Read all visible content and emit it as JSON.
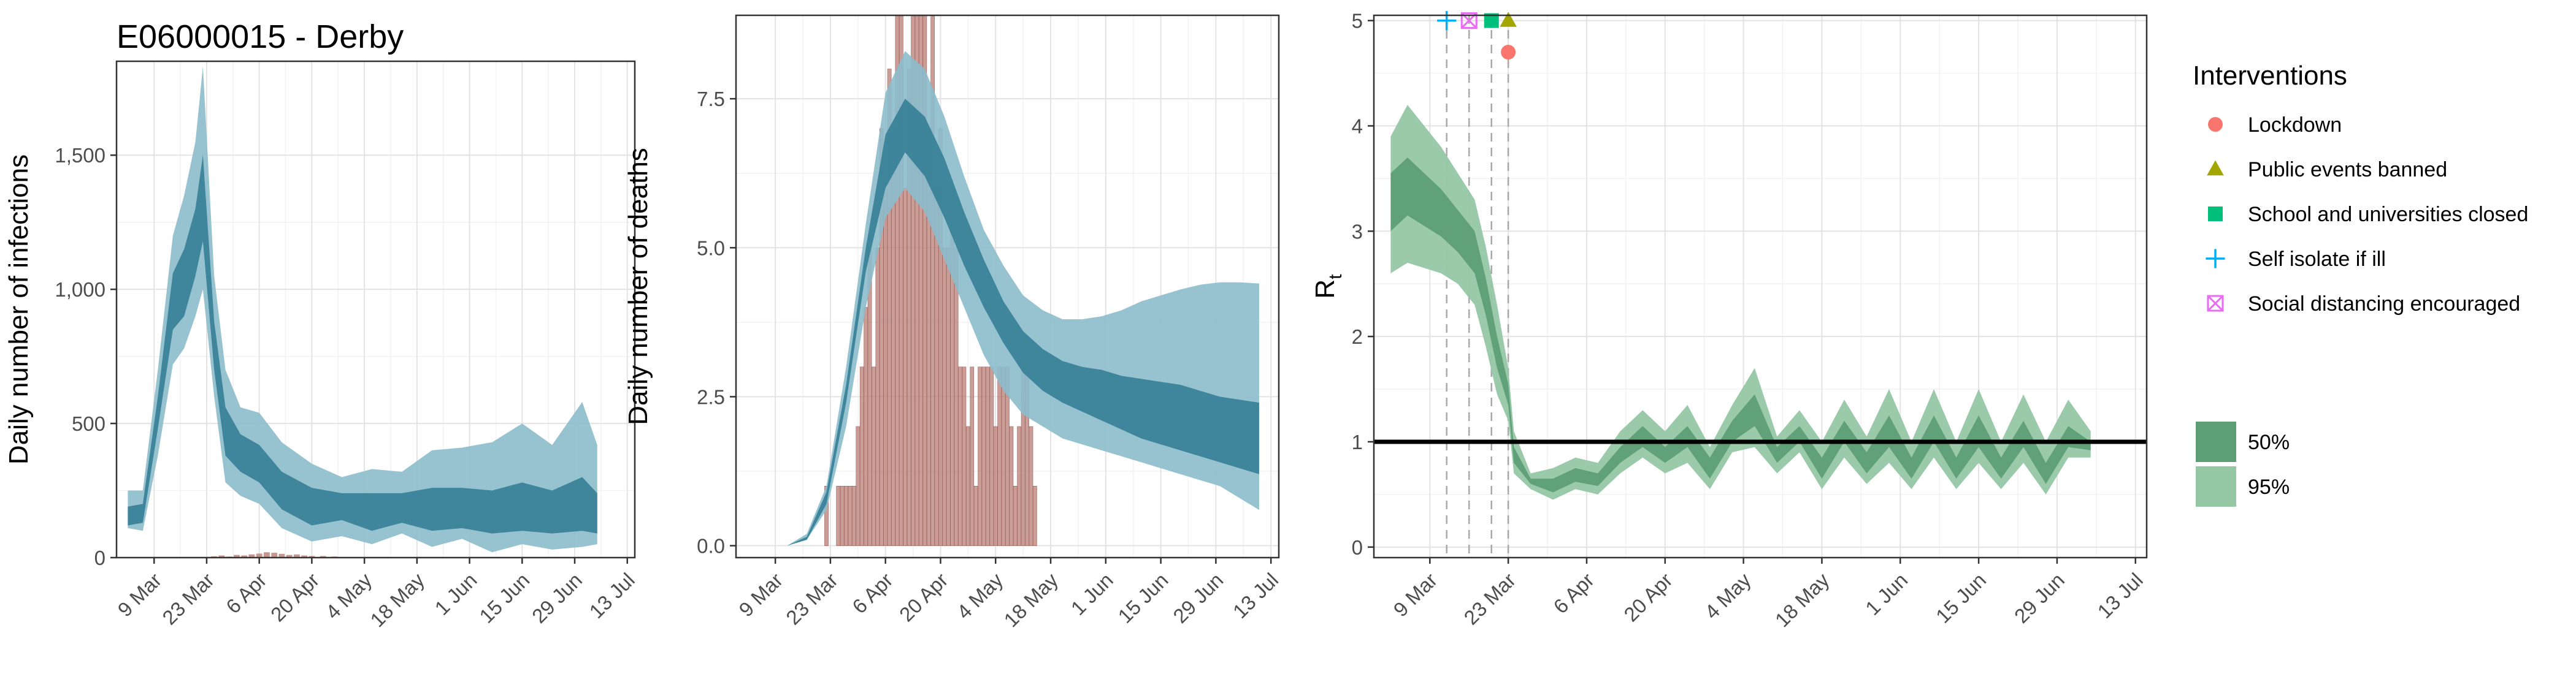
{
  "title": "E06000015 - Derby",
  "colors": {
    "band50": "#357e96",
    "band95": "#8cbccc",
    "bars": "#b87c74",
    "rt_band50": "#5e9e76",
    "rt_band95": "#95c7a5",
    "lockdown": "#f8766d",
    "public_events": "#a3a500",
    "schools": "#00bf7d",
    "self_isolate": "#00b0f6",
    "social_distancing": "#e76bf3"
  },
  "x_ticks": [
    "9 Mar",
    "23 Mar",
    "6 Apr",
    "20 Apr",
    "4 May",
    "18 May",
    "1 Jun",
    "15 Jun",
    "29 Jun",
    "13 Jul"
  ],
  "chart_data": [
    {
      "type": "area",
      "title": "E06000015 - Derby",
      "ylabel": "Daily number of infections",
      "xlabel": "",
      "ylim": [
        0,
        1850
      ],
      "yticks": [
        0,
        500,
        1000,
        1500
      ],
      "ytick_labels": [
        "0",
        "500",
        "1,000",
        "1,500"
      ],
      "xlim": [
        "2020-02-28",
        "2020-07-15"
      ],
      "grid": true,
      "series": [
        {
          "kind": "band",
          "band": "95%",
          "x": [
            "2020-03-02",
            "2020-03-06",
            "2020-03-10",
            "2020-03-14",
            "2020-03-17",
            "2020-03-20",
            "2020-03-22",
            "2020-03-25",
            "2020-03-28",
            "2020-04-01",
            "2020-04-06",
            "2020-04-12",
            "2020-04-20",
            "2020-04-28",
            "2020-05-06",
            "2020-05-14",
            "2020-05-22",
            "2020-05-30",
            "2020-06-07",
            "2020-06-15",
            "2020-06-23",
            "2020-07-01",
            "2020-07-05"
          ],
          "lower": [
            110,
            100,
            380,
            720,
            780,
            900,
            1000,
            600,
            280,
            230,
            200,
            110,
            60,
            80,
            50,
            90,
            40,
            70,
            20,
            50,
            30,
            40,
            50
          ],
          "upper": [
            250,
            250,
            700,
            1200,
            1350,
            1550,
            1830,
            1050,
            700,
            560,
            540,
            430,
            350,
            300,
            330,
            320,
            400,
            410,
            430,
            500,
            420,
            580,
            420
          ]
        },
        {
          "kind": "band",
          "band": "50%",
          "x": [
            "2020-03-02",
            "2020-03-06",
            "2020-03-10",
            "2020-03-14",
            "2020-03-17",
            "2020-03-20",
            "2020-03-22",
            "2020-03-25",
            "2020-03-28",
            "2020-04-01",
            "2020-04-06",
            "2020-04-12",
            "2020-04-20",
            "2020-04-28",
            "2020-05-06",
            "2020-05-14",
            "2020-05-22",
            "2020-05-30",
            "2020-06-07",
            "2020-06-15",
            "2020-06-23",
            "2020-07-01",
            "2020-07-05"
          ],
          "lower": [
            120,
            130,
            480,
            850,
            900,
            1050,
            1180,
            700,
            380,
            320,
            280,
            180,
            120,
            140,
            100,
            130,
            100,
            110,
            90,
            100,
            90,
            100,
            90
          ],
          "upper": [
            190,
            200,
            600,
            1060,
            1150,
            1300,
            1500,
            880,
            560,
            460,
            420,
            320,
            260,
            240,
            240,
            240,
            260,
            260,
            250,
            280,
            250,
            300,
            240
          ]
        }
      ],
      "bars": {
        "x": [
          "2020-03-25",
          "2020-03-27",
          "2020-03-29",
          "2020-03-31",
          "2020-04-02",
          "2020-04-04",
          "2020-04-06",
          "2020-04-08",
          "2020-04-10",
          "2020-04-12",
          "2020-04-14",
          "2020-04-16",
          "2020-04-18",
          "2020-04-20",
          "2020-04-23",
          "2020-04-26"
        ],
        "values": [
          5,
          8,
          4,
          10,
          8,
          12,
          15,
          20,
          18,
          14,
          10,
          12,
          8,
          6,
          6,
          4
        ]
      }
    },
    {
      "type": "area",
      "ylabel": "Daily number of deaths",
      "xlabel": "",
      "ylim": [
        -0.2,
        8.9
      ],
      "yticks": [
        0,
        2.5,
        5,
        7.5
      ],
      "ytick_labels": [
        "0.0",
        "2.5",
        "5.0",
        "7.5"
      ],
      "xlim": [
        "2020-02-28",
        "2020-07-15"
      ],
      "grid": true,
      "series": [
        {
          "kind": "band",
          "band": "95%",
          "x": [
            "2020-03-07",
            "2020-03-12",
            "2020-03-17",
            "2020-03-22",
            "2020-03-27",
            "2020-04-01",
            "2020-04-06",
            "2020-04-11",
            "2020-04-16",
            "2020-04-21",
            "2020-04-26",
            "2020-05-01",
            "2020-05-06",
            "2020-05-11",
            "2020-05-16",
            "2020-05-21",
            "2020-05-26",
            "2020-05-31",
            "2020-06-05",
            "2020-06-10",
            "2020-06-15",
            "2020-06-20",
            "2020-06-25",
            "2020-06-30",
            "2020-07-05",
            "2020-07-10"
          ],
          "lower": [
            0.0,
            0.0,
            0.1,
            0.6,
            2.0,
            4.0,
            5.5,
            6.0,
            5.6,
            4.8,
            4.0,
            3.2,
            2.6,
            2.2,
            2.0,
            1.8,
            1.7,
            1.6,
            1.5,
            1.4,
            1.3,
            1.2,
            1.1,
            1.0,
            0.8,
            0.6
          ],
          "upper": [
            0.0,
            0.0,
            0.2,
            1.0,
            3.0,
            5.4,
            7.6,
            8.3,
            8.0,
            7.2,
            6.2,
            5.3,
            4.7,
            4.2,
            3.95,
            3.8,
            3.8,
            3.85,
            3.95,
            4.1,
            4.2,
            4.3,
            4.38,
            4.42,
            4.42,
            4.4
          ]
        },
        {
          "kind": "band",
          "band": "50%",
          "x": [
            "2020-03-07",
            "2020-03-12",
            "2020-03-17",
            "2020-03-22",
            "2020-03-27",
            "2020-04-01",
            "2020-04-06",
            "2020-04-11",
            "2020-04-16",
            "2020-04-21",
            "2020-04-26",
            "2020-05-01",
            "2020-05-06",
            "2020-05-11",
            "2020-05-16",
            "2020-05-21",
            "2020-05-26",
            "2020-05-31",
            "2020-06-05",
            "2020-06-10",
            "2020-06-15",
            "2020-06-20",
            "2020-06-25",
            "2020-06-30",
            "2020-07-05",
            "2020-07-10"
          ],
          "lower": [
            0.0,
            0.0,
            0.1,
            0.7,
            2.4,
            4.6,
            6.0,
            6.6,
            6.2,
            5.5,
            4.7,
            4.0,
            3.4,
            2.9,
            2.6,
            2.4,
            2.25,
            2.1,
            1.95,
            1.8,
            1.7,
            1.6,
            1.5,
            1.4,
            1.3,
            1.2
          ],
          "upper": [
            0.0,
            0.0,
            0.15,
            0.9,
            2.7,
            5.0,
            6.9,
            7.5,
            7.2,
            6.5,
            5.6,
            4.8,
            4.1,
            3.6,
            3.3,
            3.1,
            3.0,
            2.95,
            2.85,
            2.8,
            2.75,
            2.7,
            2.6,
            2.5,
            2.45,
            2.4
          ]
        }
      ],
      "bars": {
        "x": [
          "2020-03-22",
          "2020-03-23",
          "2020-03-24",
          "2020-03-25",
          "2020-03-26",
          "2020-03-27",
          "2020-03-28",
          "2020-03-29",
          "2020-03-30",
          "2020-03-31",
          "2020-04-01",
          "2020-04-02",
          "2020-04-03",
          "2020-04-04",
          "2020-04-05",
          "2020-04-06",
          "2020-04-07",
          "2020-04-08",
          "2020-04-09",
          "2020-04-10",
          "2020-04-11",
          "2020-04-12",
          "2020-04-13",
          "2020-04-14",
          "2020-04-15",
          "2020-04-16",
          "2020-04-17",
          "2020-04-18",
          "2020-04-19",
          "2020-04-20",
          "2020-04-21",
          "2020-04-22",
          "2020-04-23",
          "2020-04-24",
          "2020-04-25",
          "2020-04-26",
          "2020-04-27",
          "2020-04-28",
          "2020-04-29",
          "2020-04-30",
          "2020-05-01",
          "2020-05-02",
          "2020-05-03",
          "2020-05-04",
          "2020-05-05",
          "2020-05-06",
          "2020-05-07",
          "2020-05-08",
          "2020-05-09",
          "2020-05-10",
          "2020-05-11",
          "2020-05-12",
          "2020-05-13",
          "2020-05-14"
        ],
        "values": [
          1,
          0,
          0,
          1,
          1,
          1,
          1,
          1,
          2,
          3,
          4,
          5,
          3,
          5,
          7,
          6,
          8,
          7,
          9,
          9,
          6,
          8,
          9,
          9,
          9,
          9,
          7,
          9,
          6,
          7,
          5,
          5,
          6,
          5,
          3,
          3,
          2,
          3,
          1,
          3,
          3,
          3,
          3,
          2,
          3,
          3,
          3,
          2,
          1,
          2,
          3,
          3,
          2,
          1
        ]
      }
    },
    {
      "type": "area",
      "ylabel": "R",
      "ylabel_subscript": "t",
      "xlabel": "",
      "ylim": [
        -0.1,
        5.05
      ],
      "yticks": [
        0,
        1,
        2,
        3,
        4,
        5
      ],
      "ytick_labels": [
        "0",
        "1",
        "2",
        "3",
        "4",
        "5"
      ],
      "xlim": [
        "2020-02-28",
        "2020-07-15"
      ],
      "grid": true,
      "reference_line": 1,
      "series": [
        {
          "kind": "band",
          "band": "95%",
          "x": [
            "2020-03-02",
            "2020-03-05",
            "2020-03-08",
            "2020-03-11",
            "2020-03-14",
            "2020-03-17",
            "2020-03-19",
            "2020-03-21",
            "2020-03-23",
            "2020-03-24",
            "2020-03-27",
            "2020-03-31",
            "2020-04-04",
            "2020-04-08",
            "2020-04-12",
            "2020-04-16",
            "2020-04-20",
            "2020-04-24",
            "2020-04-28",
            "2020-05-02",
            "2020-05-06",
            "2020-05-10",
            "2020-05-14",
            "2020-05-18",
            "2020-05-22",
            "2020-05-26",
            "2020-05-30",
            "2020-06-03",
            "2020-06-07",
            "2020-06-11",
            "2020-06-15",
            "2020-06-19",
            "2020-06-23",
            "2020-06-27",
            "2020-07-01",
            "2020-07-05"
          ],
          "lower": [
            2.6,
            2.7,
            2.65,
            2.6,
            2.5,
            2.3,
            1.9,
            1.45,
            1.2,
            0.7,
            0.55,
            0.45,
            0.55,
            0.5,
            0.7,
            0.85,
            0.7,
            0.8,
            0.55,
            0.9,
            0.95,
            0.7,
            0.9,
            0.55,
            0.85,
            0.6,
            0.8,
            0.55,
            0.85,
            0.55,
            0.8,
            0.55,
            0.8,
            0.5,
            0.85,
            0.85
          ],
          "upper": [
            3.9,
            4.2,
            4.0,
            3.8,
            3.55,
            3.3,
            2.85,
            2.3,
            1.7,
            1.1,
            0.7,
            0.75,
            0.85,
            0.8,
            1.1,
            1.3,
            1.1,
            1.35,
            0.95,
            1.35,
            1.7,
            1.05,
            1.3,
            1.0,
            1.4,
            1.05,
            1.5,
            1.0,
            1.5,
            1.0,
            1.5,
            1.0,
            1.45,
            1.0,
            1.4,
            1.1
          ]
        },
        {
          "kind": "band",
          "band": "50%",
          "x": [
            "2020-03-02",
            "2020-03-05",
            "2020-03-08",
            "2020-03-11",
            "2020-03-14",
            "2020-03-17",
            "2020-03-19",
            "2020-03-21",
            "2020-03-23",
            "2020-03-24",
            "2020-03-27",
            "2020-03-31",
            "2020-04-04",
            "2020-04-08",
            "2020-04-12",
            "2020-04-16",
            "2020-04-20",
            "2020-04-24",
            "2020-04-28",
            "2020-05-02",
            "2020-05-06",
            "2020-05-10",
            "2020-05-14",
            "2020-05-18",
            "2020-05-22",
            "2020-05-26",
            "2020-05-30",
            "2020-06-03",
            "2020-06-07",
            "2020-06-11",
            "2020-06-15",
            "2020-06-19",
            "2020-06-23",
            "2020-06-27",
            "2020-07-01",
            "2020-07-05"
          ],
          "lower": [
            3.0,
            3.15,
            3.05,
            2.95,
            2.8,
            2.6,
            2.2,
            1.7,
            1.35,
            0.8,
            0.6,
            0.52,
            0.62,
            0.58,
            0.8,
            0.95,
            0.8,
            0.95,
            0.65,
            1.0,
            1.15,
            0.8,
            1.0,
            0.65,
            1.0,
            0.7,
            0.95,
            0.65,
            1.0,
            0.65,
            0.95,
            0.65,
            0.95,
            0.6,
            0.95,
            0.92
          ],
          "upper": [
            3.55,
            3.7,
            3.55,
            3.4,
            3.2,
            3.0,
            2.55,
            2.0,
            1.55,
            0.95,
            0.65,
            0.65,
            0.75,
            0.7,
            0.95,
            1.15,
            0.95,
            1.15,
            0.85,
            1.2,
            1.45,
            0.95,
            1.15,
            0.85,
            1.2,
            0.9,
            1.25,
            0.85,
            1.25,
            0.85,
            1.25,
            0.85,
            1.2,
            0.8,
            1.15,
            1.0
          ]
        }
      ],
      "interventions": [
        {
          "name": "Self isolate if ill",
          "date": "2020-03-12",
          "y": 5,
          "shape": "plus"
        },
        {
          "name": "Social distancing encouraged",
          "date": "2020-03-16",
          "y": 5,
          "shape": "square-x"
        },
        {
          "name": "School and universities closed",
          "date": "2020-03-20",
          "y": 5,
          "shape": "square"
        },
        {
          "name": "Public events banned",
          "date": "2020-03-23",
          "y": 5,
          "shape": "triangle"
        },
        {
          "name": "Lockdown",
          "date": "2020-03-23",
          "y": 4.7,
          "shape": "circle"
        }
      ]
    }
  ],
  "legend": {
    "title": "Interventions",
    "items": [
      {
        "label": "Lockdown",
        "shape": "circle",
        "color": "#f8766d"
      },
      {
        "label": "Public events banned",
        "shape": "triangle",
        "color": "#a3a500"
      },
      {
        "label": "School and universities closed",
        "shape": "square",
        "color": "#00bf7d"
      },
      {
        "label": "Self isolate if ill",
        "shape": "plus",
        "color": "#00b0f6"
      },
      {
        "label": "Social distancing encouraged",
        "shape": "square-x",
        "color": "#e76bf3"
      }
    ],
    "bands": [
      {
        "label": "50%",
        "color": "#5e9e76"
      },
      {
        "label": "95%",
        "color": "#95c7a5"
      }
    ]
  }
}
